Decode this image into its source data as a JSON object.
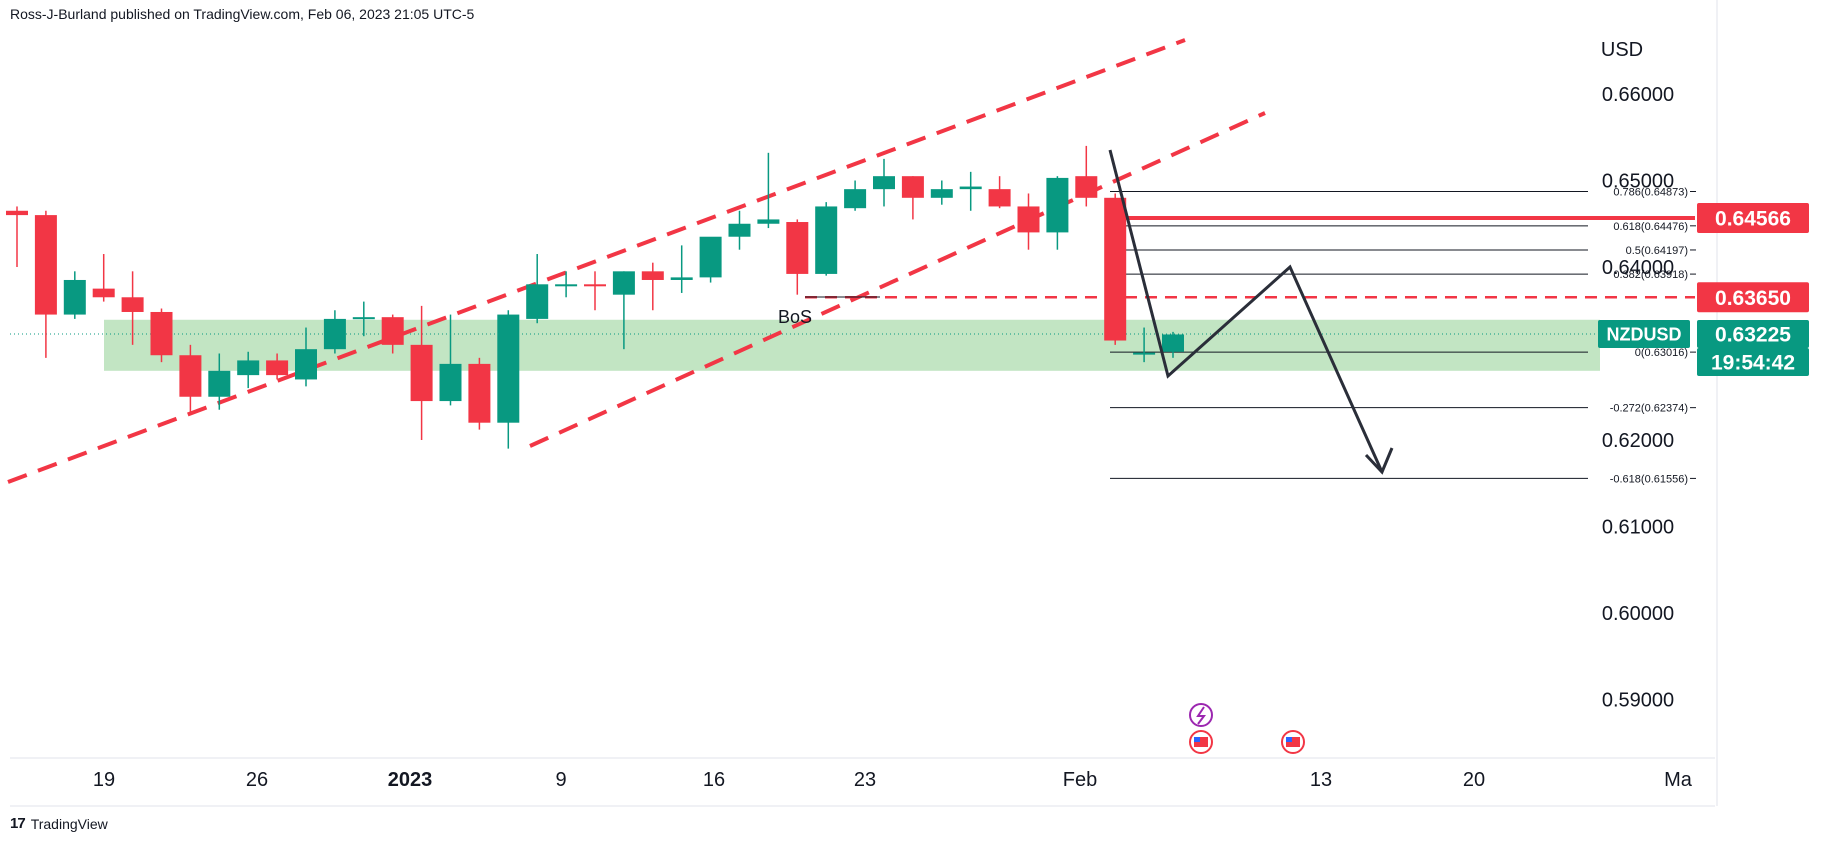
{
  "header": {
    "attribution": "Ross-J-Burland published on TradingView.com, Feb 06, 2023 21:05 UTC-5"
  },
  "footer": {
    "logo_text": "TradingView",
    "logo_mark": "17"
  },
  "colors": {
    "up": "#089981",
    "down": "#f23645",
    "red_line": "#f23645",
    "zone_fill": "#b7e1b9",
    "fib_line": "#131722",
    "arrow": "#2a2e39"
  },
  "chart_data": {
    "type": "candlestick",
    "symbol": "NZDUSD",
    "currency_label": "USD",
    "ylim": [
      0.5825,
      0.6718
    ],
    "y_ticks": [
      "0.66000",
      "0.65000",
      "0.64000",
      "0.62000",
      "0.61000",
      "0.60000",
      "0.59000"
    ],
    "x_ticks": [
      "19",
      "26",
      "2023",
      "9",
      "16",
      "23",
      "Feb",
      "13",
      "20",
      "Ma"
    ],
    "price_badges": {
      "level_1": "0.64566",
      "level_2": "0.63650",
      "current_symbol": "NZDUSD",
      "current_price": "0.63225",
      "countdown": "19:54:42"
    },
    "annotation": "BoS",
    "candles": [
      {
        "o": 0.6465,
        "h": 0.647,
        "l": 0.64,
        "c": 0.646
      },
      {
        "o": 0.646,
        "h": 0.6465,
        "l": 0.6295,
        "c": 0.6345
      },
      {
        "o": 0.6345,
        "h": 0.6395,
        "l": 0.634,
        "c": 0.6385
      },
      {
        "o": 0.6375,
        "h": 0.6415,
        "l": 0.636,
        "c": 0.6365
      },
      {
        "o": 0.6365,
        "h": 0.6395,
        "l": 0.631,
        "c": 0.6348
      },
      {
        "o": 0.6348,
        "h": 0.6352,
        "l": 0.629,
        "c": 0.6298
      },
      {
        "o": 0.6298,
        "h": 0.631,
        "l": 0.6232,
        "c": 0.625
      },
      {
        "o": 0.625,
        "h": 0.63,
        "l": 0.6235,
        "c": 0.628
      },
      {
        "o": 0.6275,
        "h": 0.6302,
        "l": 0.626,
        "c": 0.6292
      },
      {
        "o": 0.6292,
        "h": 0.63,
        "l": 0.627,
        "c": 0.6275
      },
      {
        "o": 0.627,
        "h": 0.633,
        "l": 0.6262,
        "c": 0.6305
      },
      {
        "o": 0.6305,
        "h": 0.635,
        "l": 0.63,
        "c": 0.634
      },
      {
        "o": 0.634,
        "h": 0.636,
        "l": 0.632,
        "c": 0.6342
      },
      {
        "o": 0.6342,
        "h": 0.6345,
        "l": 0.63,
        "c": 0.631
      },
      {
        "o": 0.631,
        "h": 0.6355,
        "l": 0.62,
        "c": 0.6245
      },
      {
        "o": 0.6245,
        "h": 0.6345,
        "l": 0.624,
        "c": 0.6288
      },
      {
        "o": 0.6288,
        "h": 0.6295,
        "l": 0.6212,
        "c": 0.622
      },
      {
        "o": 0.622,
        "h": 0.635,
        "l": 0.619,
        "c": 0.6345
      },
      {
        "o": 0.634,
        "h": 0.6415,
        "l": 0.6335,
        "c": 0.638
      },
      {
        "o": 0.638,
        "h": 0.6395,
        "l": 0.6365,
        "c": 0.638
      },
      {
        "o": 0.638,
        "h": 0.6395,
        "l": 0.635,
        "c": 0.6378
      },
      {
        "o": 0.6368,
        "h": 0.6395,
        "l": 0.6305,
        "c": 0.6395
      },
      {
        "o": 0.6395,
        "h": 0.6405,
        "l": 0.635,
        "c": 0.6385
      },
      {
        "o": 0.6385,
        "h": 0.6425,
        "l": 0.637,
        "c": 0.6388
      },
      {
        "o": 0.6388,
        "h": 0.643,
        "l": 0.6382,
        "c": 0.6435
      },
      {
        "o": 0.6435,
        "h": 0.6465,
        "l": 0.642,
        "c": 0.645
      },
      {
        "o": 0.645,
        "h": 0.6532,
        "l": 0.6445,
        "c": 0.6455
      },
      {
        "o": 0.6452,
        "h": 0.6455,
        "l": 0.6368,
        "c": 0.6392
      },
      {
        "o": 0.6392,
        "h": 0.6475,
        "l": 0.639,
        "c": 0.647
      },
      {
        "o": 0.6468,
        "h": 0.65,
        "l": 0.6465,
        "c": 0.649
      },
      {
        "o": 0.649,
        "h": 0.6525,
        "l": 0.647,
        "c": 0.6505
      },
      {
        "o": 0.6505,
        "h": 0.6505,
        "l": 0.6455,
        "c": 0.648
      },
      {
        "o": 0.648,
        "h": 0.65,
        "l": 0.6472,
        "c": 0.649
      },
      {
        "o": 0.649,
        "h": 0.651,
        "l": 0.6465,
        "c": 0.6493
      },
      {
        "o": 0.649,
        "h": 0.6505,
        "l": 0.6468,
        "c": 0.647
      },
      {
        "o": 0.647,
        "h": 0.6485,
        "l": 0.642,
        "c": 0.644
      },
      {
        "o": 0.644,
        "h": 0.6505,
        "l": 0.642,
        "c": 0.6503
      },
      {
        "o": 0.6505,
        "h": 0.654,
        "l": 0.647,
        "c": 0.648
      },
      {
        "o": 0.648,
        "h": 0.6485,
        "l": 0.631,
        "c": 0.6315
      },
      {
        "o": 0.63,
        "h": 0.633,
        "l": 0.629,
        "c": 0.6301
      },
      {
        "o": 0.6302,
        "h": 0.6325,
        "l": 0.6295,
        "c": 0.6322
      }
    ],
    "candle_dates": [
      0,
      1,
      2,
      3,
      4,
      5,
      6,
      7,
      8,
      9,
      10,
      11,
      12,
      13,
      14,
      15,
      16,
      17,
      18,
      19,
      20,
      21,
      22,
      23,
      24,
      25,
      26,
      27,
      28,
      29,
      30,
      31,
      32,
      33,
      34,
      35,
      36,
      37,
      38,
      39,
      40
    ],
    "zone": {
      "top": 0.6339,
      "bottom": 0.628
    },
    "fib_levels": [
      {
        "label": "0.786(0.64873)",
        "price": 0.64873
      },
      {
        "label": "0.618(0.64476)",
        "price": 0.64476
      },
      {
        "label": "0.5(0.64197)",
        "price": 0.64197
      },
      {
        "label": "0.382(0.63918)",
        "price": 0.63918
      },
      {
        "label": "0(0.63016)",
        "price": 0.63016
      },
      {
        "label": "-0.272(0.62374)",
        "price": 0.62374
      },
      {
        "label": "-0.618(0.61556)",
        "price": 0.61556
      }
    ],
    "red_levels": [
      0.64566,
      0.6365
    ]
  }
}
